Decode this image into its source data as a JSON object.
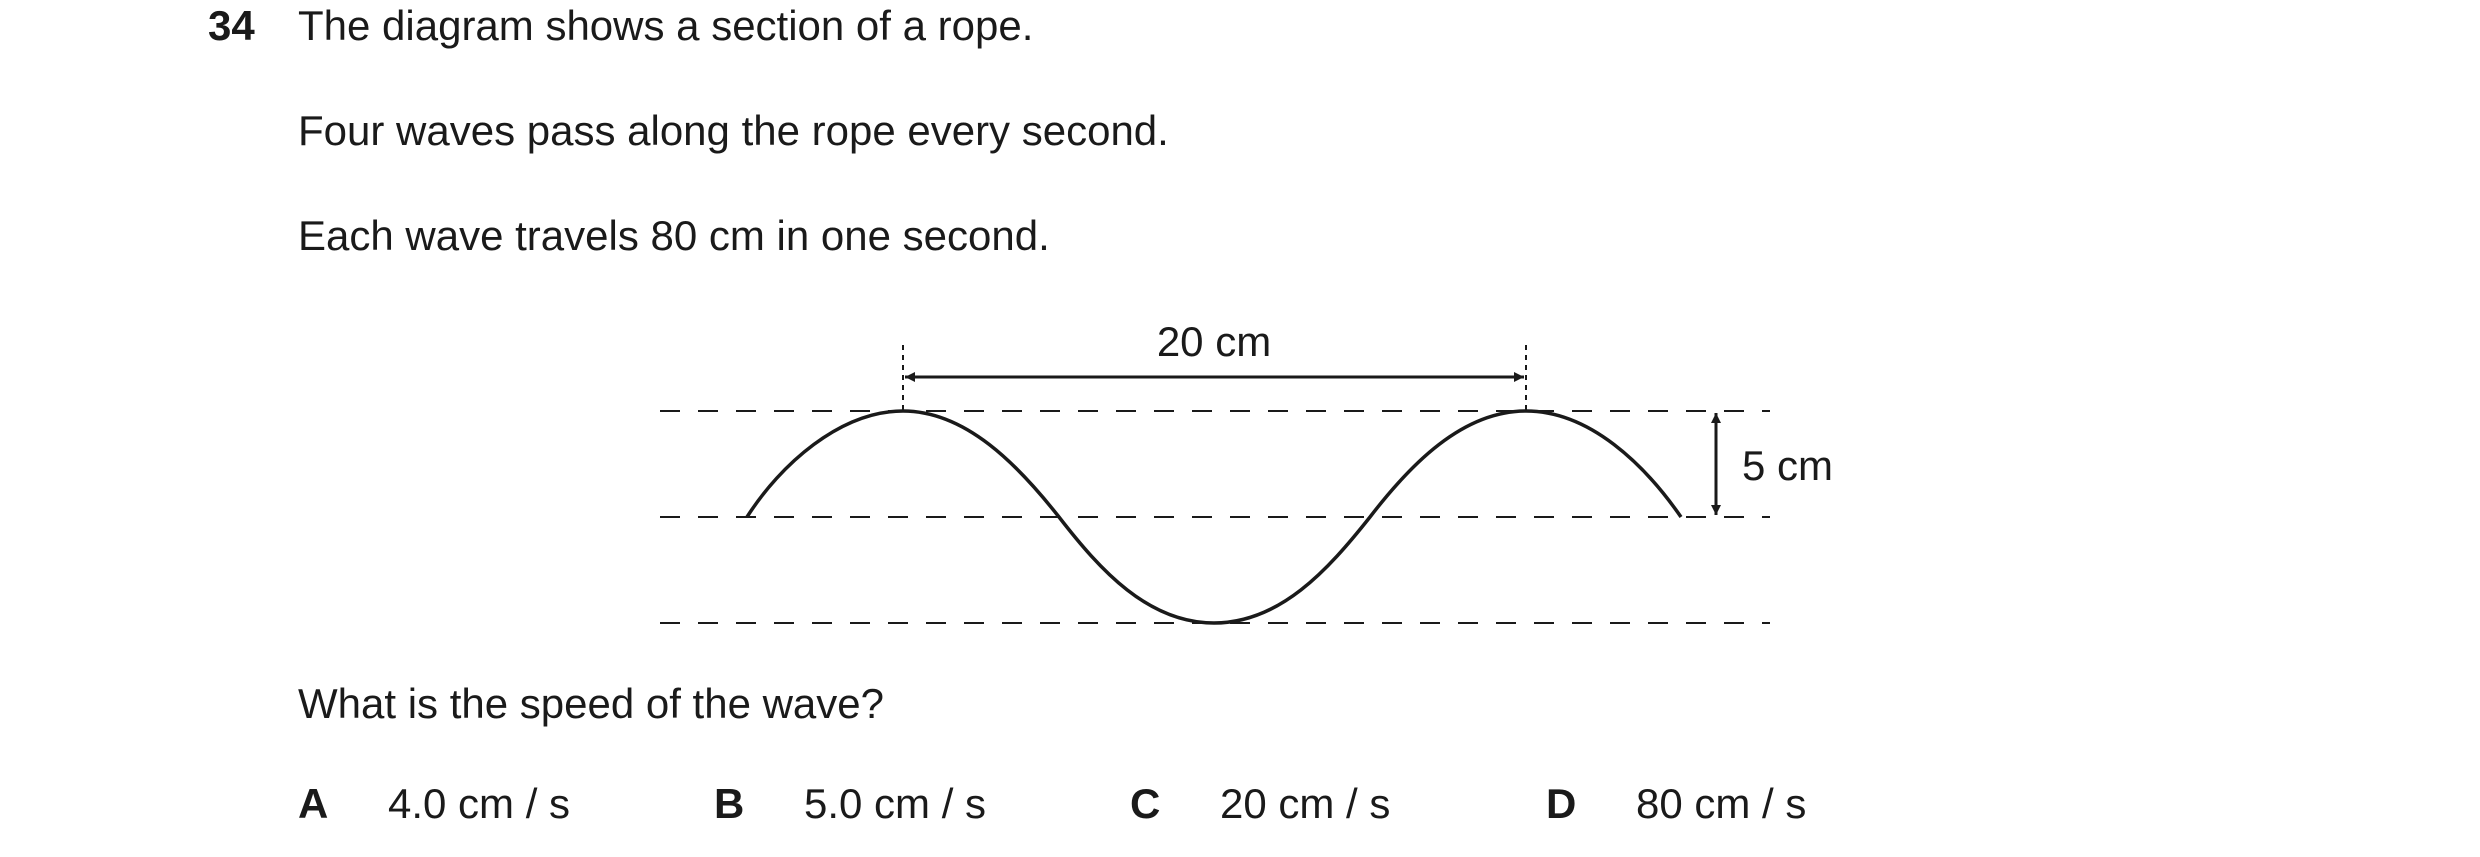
{
  "question": {
    "number": "34",
    "line1": "The diagram shows a section of a rope.",
    "line2": "Four waves pass along the rope every second.",
    "line3": "Each wave travels 80 cm in one second.",
    "prompt": "What is the speed of the wave?"
  },
  "diagram": {
    "wavelength_label": "20 cm",
    "amplitude_label": "5 cm"
  },
  "options": [
    {
      "letter": "A",
      "value": "4.0 cm / s"
    },
    {
      "letter": "B",
      "value": "5.0 cm / s"
    },
    {
      "letter": "C",
      "value": "20 cm / s"
    },
    {
      "letter": "D",
      "value": "80 cm / s"
    }
  ]
}
